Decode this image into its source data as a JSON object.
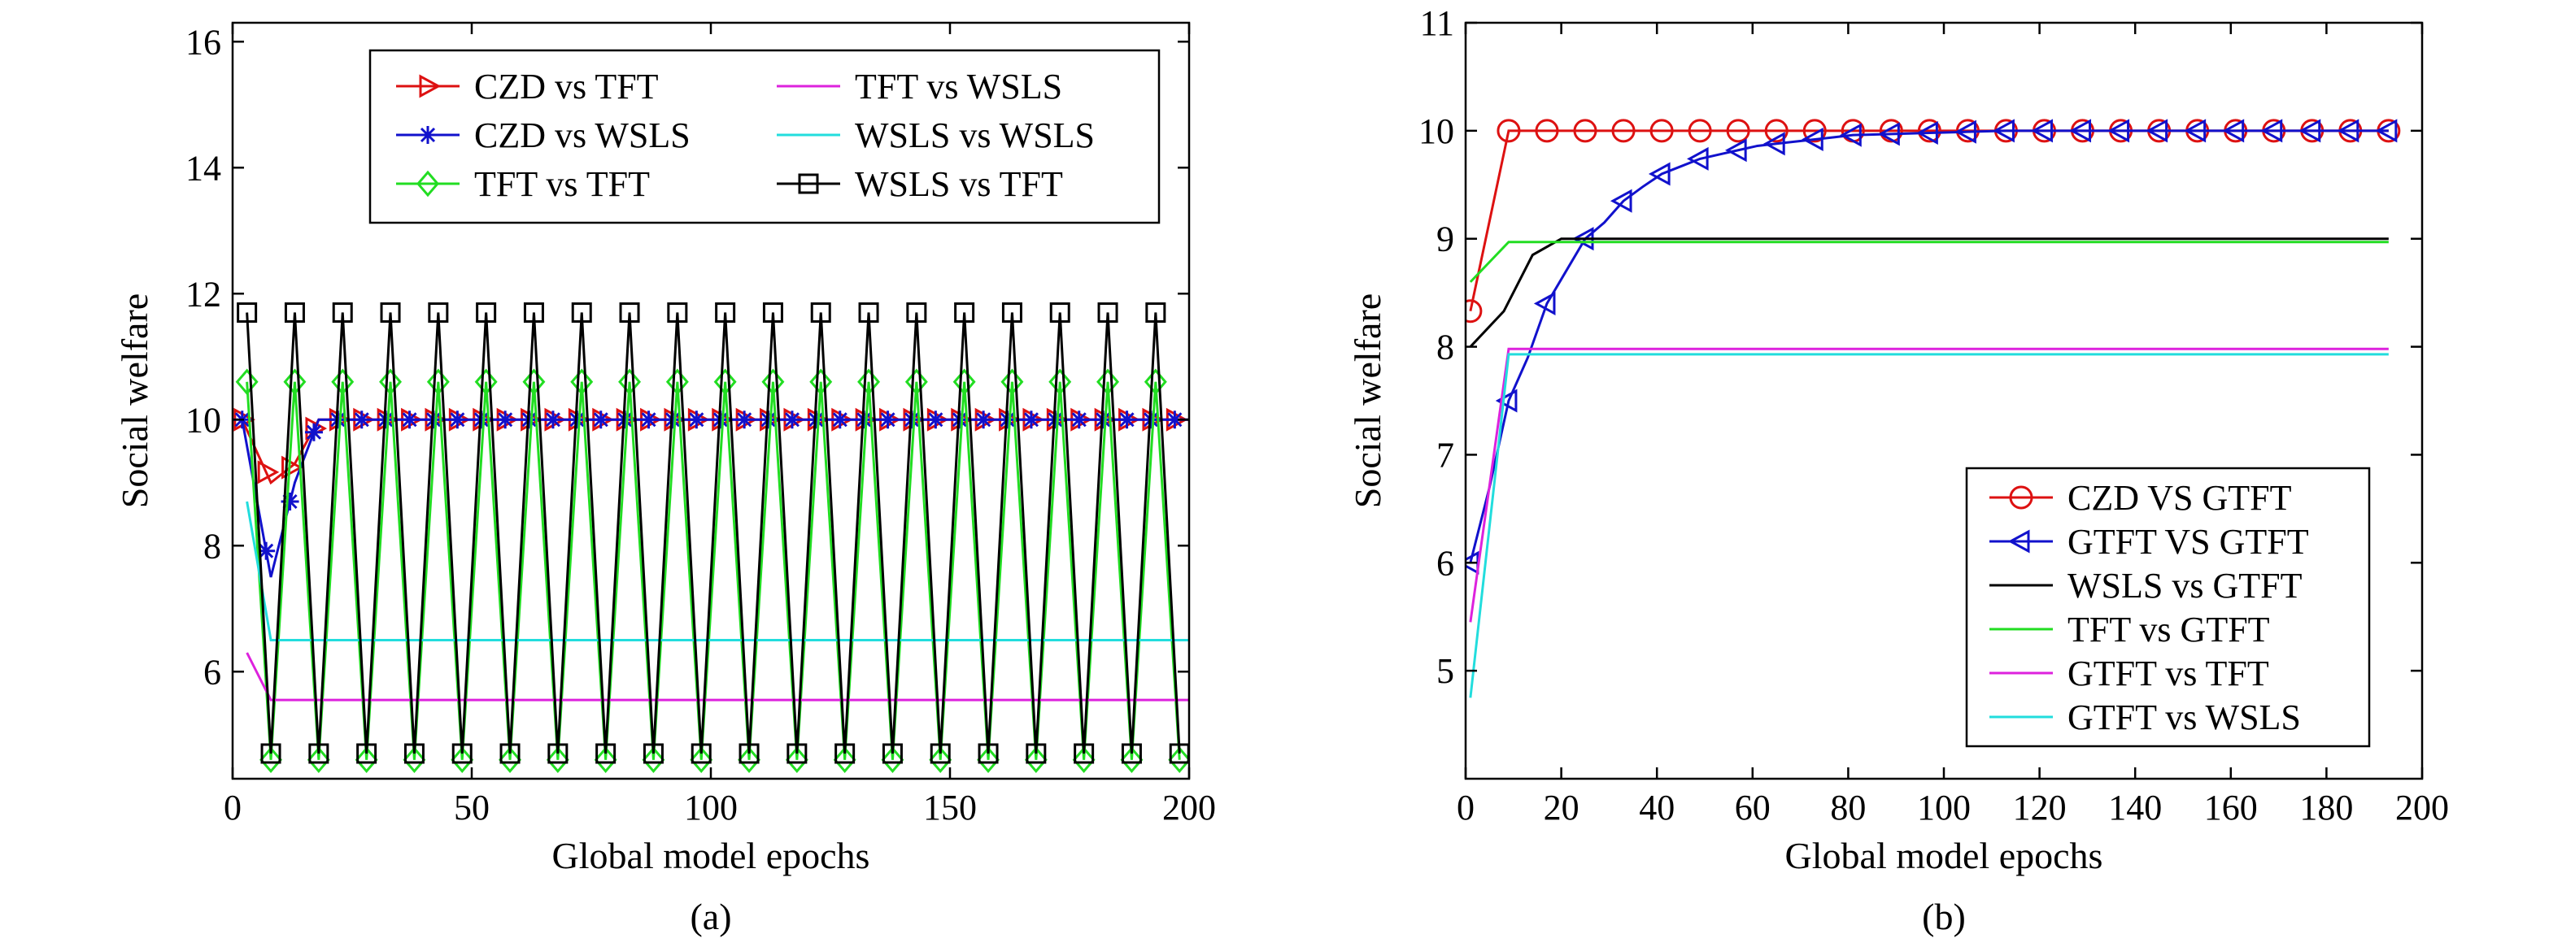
{
  "chart_data": [
    {
      "type": "line",
      "panel_label": "(a)",
      "xlabel": "Global model epochs",
      "ylabel": "Social welfare",
      "xlim": [
        0,
        200
      ],
      "ylim": [
        4.3,
        16.3
      ],
      "xticks": [
        0,
        50,
        100,
        150,
        200
      ],
      "yticks": [
        6,
        8,
        10,
        12,
        14,
        16
      ],
      "grid": false,
      "legend": "top-right",
      "series": [
        {
          "name": "CZD vs TFT",
          "color": "#dd1111",
          "marker": "triangle-right",
          "x": [
            2,
            8,
            13,
            18,
            200
          ],
          "y": [
            10,
            9,
            9.3,
            10,
            10
          ],
          "marker_step": 5
        },
        {
          "name": "CZD vs WSLS",
          "color": "#1111cc",
          "marker": "asterisk",
          "x": [
            2,
            8,
            13,
            18,
            200
          ],
          "y": [
            10,
            7.5,
            9,
            10,
            10
          ],
          "marker_step": 5
        },
        {
          "name": "TFT vs TFT",
          "color": "#22dd22",
          "marker": "diamond",
          "osc": {
            "start": 3,
            "period": 10,
            "high": 10.6,
            "low": 4.6,
            "end": 199
          }
        },
        {
          "name": "TFT vs WSLS",
          "color": "#dd22dd",
          "marker": "none",
          "x": [
            3,
            8,
            200
          ],
          "y": [
            6.3,
            5.55,
            5.55
          ]
        },
        {
          "name": "WSLS vs WSLS",
          "color": "#22dddd",
          "marker": "none",
          "x": [
            3,
            8,
            200
          ],
          "y": [
            8.7,
            6.5,
            6.5
          ]
        },
        {
          "name": "WSLS vs TFT",
          "color": "#000000",
          "marker": "square",
          "osc": {
            "start": 3,
            "period": 10,
            "high": 11.7,
            "low": 4.7,
            "end": 199
          }
        }
      ]
    },
    {
      "type": "line",
      "panel_label": "(b)",
      "xlabel": "Global model epochs",
      "ylabel": "Social welfare",
      "xlim": [
        0,
        200
      ],
      "ylim": [
        4.0,
        11.0
      ],
      "xticks": [
        0,
        20,
        40,
        60,
        80,
        100,
        120,
        140,
        160,
        180,
        200
      ],
      "yticks": [
        5,
        6,
        7,
        8,
        9,
        10,
        11
      ],
      "grid": false,
      "legend": "bottom-right",
      "series": [
        {
          "name": "CZD VS GTFT",
          "color": "#dd1111",
          "marker": "circle",
          "x": [
            1,
            9,
            193
          ],
          "y": [
            8.33,
            10,
            10
          ],
          "marker_step": 8
        },
        {
          "name": "GTFT VS GTFT",
          "color": "#1111cc",
          "marker": "triangle-left",
          "x": [
            1,
            5,
            9,
            13,
            17,
            21,
            25,
            29,
            33,
            37,
            41,
            45,
            49,
            53,
            57,
            61,
            65,
            69,
            73,
            77,
            81,
            89,
            97,
            105,
            113,
            121,
            129,
            137,
            145,
            153,
            161,
            169,
            177,
            185,
            193
          ],
          "y": [
            6.0,
            6.7,
            7.5,
            7.9,
            8.4,
            8.7,
            9.0,
            9.15,
            9.35,
            9.48,
            9.6,
            9.67,
            9.74,
            9.78,
            9.82,
            9.86,
            9.88,
            9.9,
            9.92,
            9.94,
            9.96,
            9.97,
            9.98,
            9.99,
            10,
            10,
            10,
            10,
            10,
            10,
            10,
            10,
            10,
            10,
            10
          ],
          "marker_step": 8
        },
        {
          "name": "WSLS vs GTFT",
          "color": "#000000",
          "marker": "none",
          "x": [
            1,
            8,
            14,
            20,
            193
          ],
          "y": [
            8.0,
            8.33,
            8.85,
            9.0,
            9.0
          ]
        },
        {
          "name": "TFT vs GTFT",
          "color": "#22dd22",
          "marker": "none",
          "x": [
            1,
            9,
            193
          ],
          "y": [
            8.6,
            8.97,
            8.97
          ]
        },
        {
          "name": "GTFT vs TFT",
          "color": "#dd22dd",
          "marker": "none",
          "x": [
            1,
            9,
            193
          ],
          "y": [
            5.45,
            7.98,
            7.98
          ]
        },
        {
          "name": "GTFT vs WSLS",
          "color": "#22dddd",
          "marker": "none",
          "x": [
            1,
            9,
            193
          ],
          "y": [
            4.75,
            7.93,
            7.93
          ]
        }
      ]
    }
  ]
}
